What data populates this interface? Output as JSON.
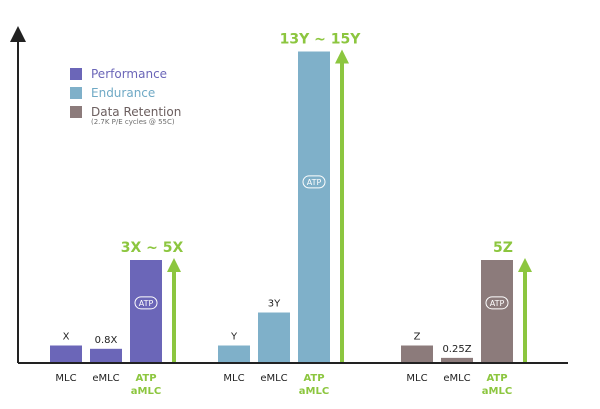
{
  "chart_data": {
    "type": "bar",
    "legend": [
      {
        "name": "Performance",
        "color": "#6b66b8",
        "text_color": "#6b66b8"
      },
      {
        "name": "Endurance",
        "color": "#7fb0c9",
        "text_color": "#6fa9c5"
      },
      {
        "name": "Data Retention",
        "color": "#8c7b7b",
        "text_color": "#6b5e5e",
        "note": "(2.7K P/E cycles @ 55C)"
      }
    ],
    "legend_position": "top-left",
    "groups": [
      {
        "metric": "Performance",
        "color": "#6b66b8",
        "categories": [
          "MLC",
          "eMLC",
          "ATP aMLC"
        ],
        "category_lines": [
          [
            "MLC"
          ],
          [
            "eMLC"
          ],
          [
            "ATP",
            "aMLC"
          ]
        ],
        "values": [
          1,
          0.8,
          5
        ],
        "value_labels": [
          "X",
          "0.8X",
          "ATP"
        ],
        "highlight": "3X ~ 5X"
      },
      {
        "metric": "Endurance",
        "color": "#7fb0c9",
        "categories": [
          "MLC",
          "eMLC",
          "ATP aMLC"
        ],
        "category_lines": [
          [
            "MLC"
          ],
          [
            "eMLC"
          ],
          [
            "ATP",
            "aMLC"
          ]
        ],
        "values": [
          1,
          3,
          15
        ],
        "value_labels": [
          "Y",
          "3Y",
          "ATP"
        ],
        "highlight": "13Y ~ 15Y"
      },
      {
        "metric": "Data Retention",
        "color": "#8c7b7b",
        "categories": [
          "MLC",
          "eMLC",
          "ATP aMLC"
        ],
        "category_lines": [
          [
            "MLC"
          ],
          [
            "eMLC"
          ],
          [
            "ATP",
            "aMLC"
          ]
        ],
        "values": [
          1,
          0.25,
          5
        ],
        "value_labels": [
          "Z",
          "0.25Z",
          "ATP"
        ],
        "highlight": "5Z"
      }
    ],
    "colors": {
      "highlight": "#8cc63f",
      "axis": "#222222",
      "label": "#222222"
    },
    "grid": false
  }
}
